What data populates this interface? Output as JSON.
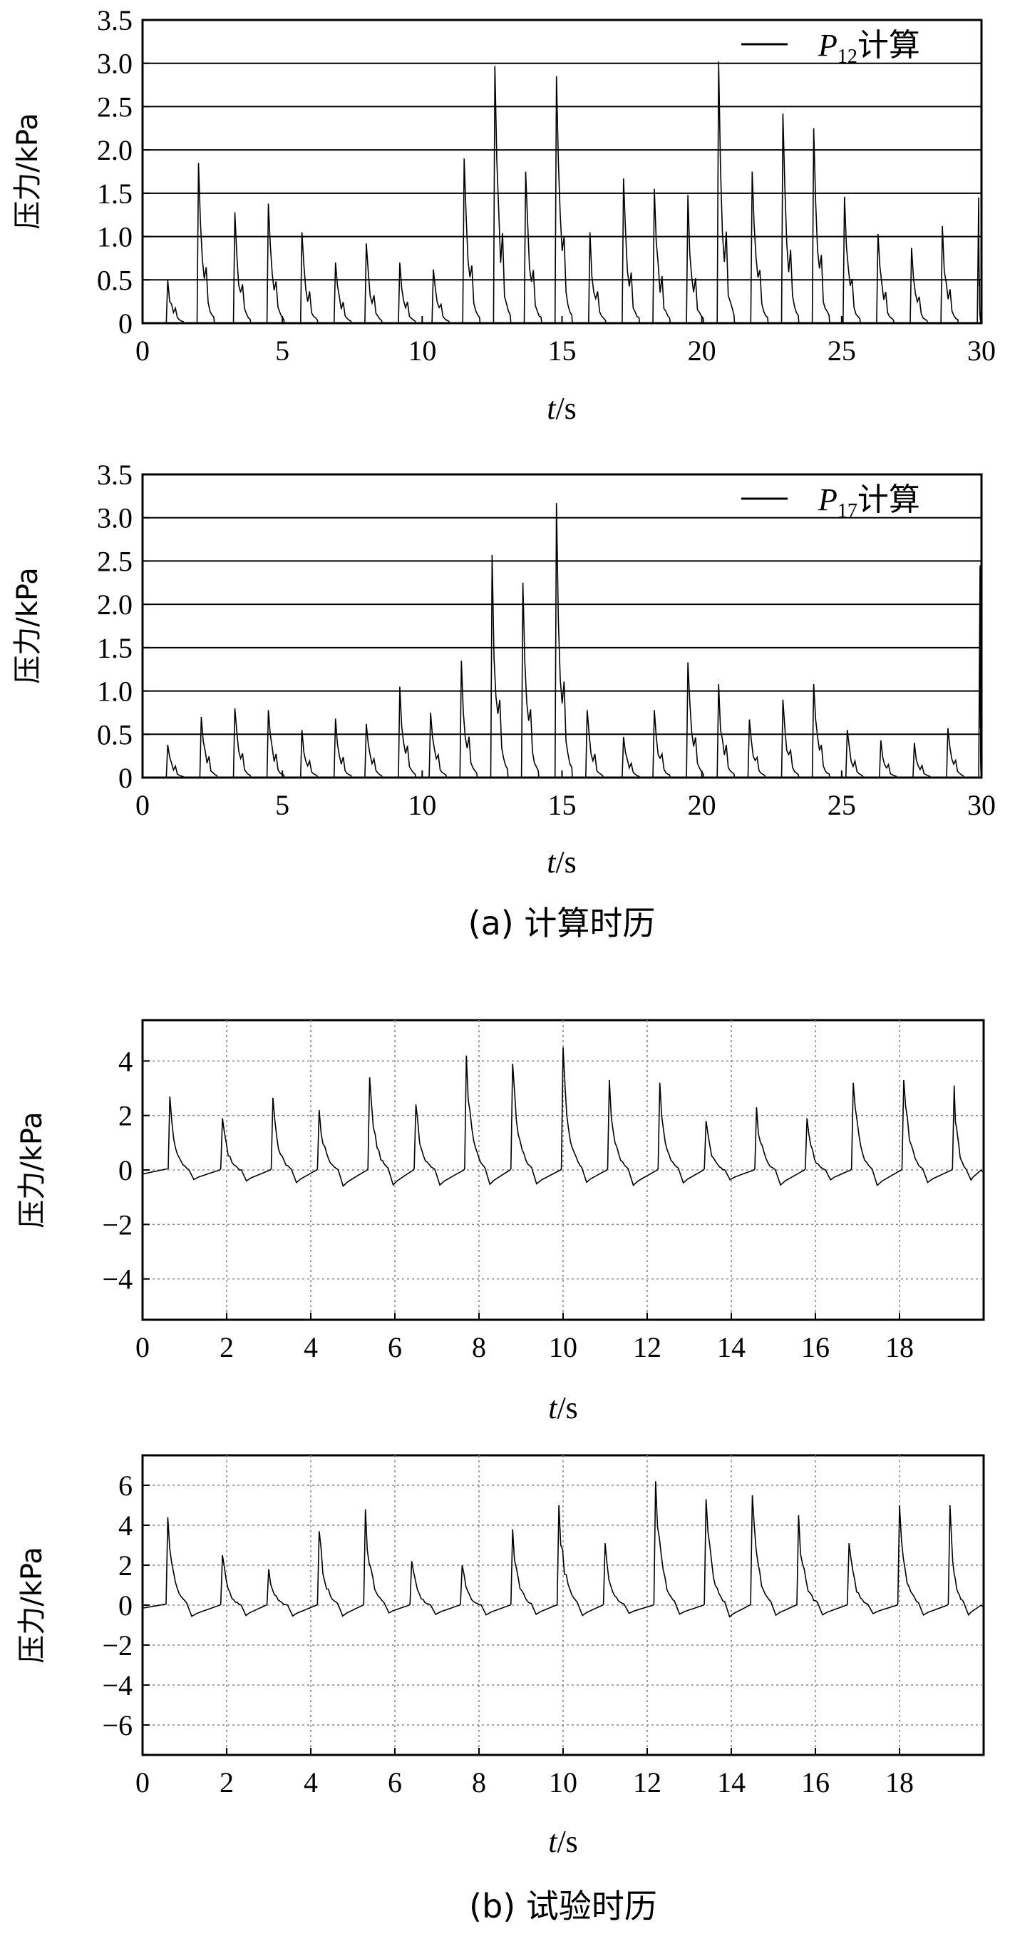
{
  "captions": {
    "a": "(a) 计算时历",
    "b": "(b) 试验时历"
  },
  "chart_data": [
    {
      "type": "line",
      "xlabel": "t/s",
      "ylabel": "压力/kPa",
      "xlim": [
        0,
        30
      ],
      "ylim": [
        0,
        3.5
      ],
      "xticks": [
        "0",
        "5",
        "10",
        "15",
        "20",
        "25",
        "30"
      ],
      "yticks": [
        "0",
        "0.5",
        "1.0",
        "1.5",
        "2.0",
        "2.5",
        "3.0",
        "3.5"
      ],
      "grid": "horizontal",
      "legend": "top-right",
      "series": [
        {
          "name": "P12计算",
          "peaks": [
            {
              "t": 0.9,
              "v": 0.5
            },
            {
              "t": 2.0,
              "v": 1.85
            },
            {
              "t": 3.3,
              "v": 1.28
            },
            {
              "t": 4.5,
              "v": 1.38
            },
            {
              "t": 5.7,
              "v": 1.05
            },
            {
              "t": 6.9,
              "v": 0.7
            },
            {
              "t": 8.0,
              "v": 0.92
            },
            {
              "t": 9.2,
              "v": 0.7
            },
            {
              "t": 10.4,
              "v": 0.62
            },
            {
              "t": 11.5,
              "v": 1.9
            },
            {
              "t": 12.6,
              "v": 2.97
            },
            {
              "t": 13.7,
              "v": 1.75
            },
            {
              "t": 14.8,
              "v": 2.85
            },
            {
              "t": 16.0,
              "v": 1.05
            },
            {
              "t": 17.2,
              "v": 1.67
            },
            {
              "t": 18.3,
              "v": 1.55
            },
            {
              "t": 19.5,
              "v": 1.48
            },
            {
              "t": 20.6,
              "v": 3.02
            },
            {
              "t": 21.8,
              "v": 1.75
            },
            {
              "t": 22.9,
              "v": 2.42
            },
            {
              "t": 24.0,
              "v": 2.25
            },
            {
              "t": 25.1,
              "v": 1.46
            },
            {
              "t": 26.3,
              "v": 1.03
            },
            {
              "t": 27.5,
              "v": 0.87
            },
            {
              "t": 28.6,
              "v": 1.12
            },
            {
              "t": 29.9,
              "v": 1.45
            }
          ]
        }
      ]
    },
    {
      "type": "line",
      "xlabel": "t/s",
      "ylabel": "压力/kPa",
      "xlim": [
        0,
        30
      ],
      "ylim": [
        0,
        3.5
      ],
      "xticks": [
        "0",
        "5",
        "10",
        "15",
        "20",
        "25",
        "30"
      ],
      "yticks": [
        "0",
        "0.5",
        "1.0",
        "1.5",
        "2.0",
        "2.5",
        "3.0",
        "3.5"
      ],
      "grid": "horizontal",
      "legend": "top-right",
      "series": [
        {
          "name": "P17计算",
          "peaks": [
            {
              "t": 0.9,
              "v": 0.38
            },
            {
              "t": 2.1,
              "v": 0.7
            },
            {
              "t": 3.3,
              "v": 0.8
            },
            {
              "t": 4.5,
              "v": 0.78
            },
            {
              "t": 5.7,
              "v": 0.55
            },
            {
              "t": 6.9,
              "v": 0.68
            },
            {
              "t": 8.0,
              "v": 0.62
            },
            {
              "t": 9.2,
              "v": 1.05
            },
            {
              "t": 10.3,
              "v": 0.75
            },
            {
              "t": 11.4,
              "v": 1.35
            },
            {
              "t": 12.5,
              "v": 2.57
            },
            {
              "t": 13.6,
              "v": 2.25
            },
            {
              "t": 14.8,
              "v": 3.17
            },
            {
              "t": 15.9,
              "v": 0.78
            },
            {
              "t": 17.2,
              "v": 0.47
            },
            {
              "t": 18.3,
              "v": 0.78
            },
            {
              "t": 19.5,
              "v": 1.33
            },
            {
              "t": 20.6,
              "v": 1.08
            },
            {
              "t": 21.7,
              "v": 0.67
            },
            {
              "t": 22.9,
              "v": 0.9
            },
            {
              "t": 24.0,
              "v": 1.08
            },
            {
              "t": 25.2,
              "v": 0.55
            },
            {
              "t": 26.4,
              "v": 0.43
            },
            {
              "t": 27.6,
              "v": 0.4
            },
            {
              "t": 28.8,
              "v": 0.57
            },
            {
              "t": 29.95,
              "v": 2.45
            }
          ]
        }
      ]
    },
    {
      "type": "line",
      "xlabel": "t/s",
      "ylabel": "压力/kPa",
      "xlim": [
        0,
        20
      ],
      "ylim": [
        -5.5,
        5.5
      ],
      "xticks": [
        "0",
        "2",
        "4",
        "6",
        "8",
        "10",
        "12",
        "14",
        "16",
        "18"
      ],
      "yticks": [
        "−4",
        "−2",
        "0",
        "2",
        "4"
      ],
      "ytick_values": [
        -4,
        -2,
        0,
        2,
        4
      ],
      "grid": "dotted",
      "series": [
        {
          "peaks": [
            {
              "t": 0.65,
              "v": 2.7
            },
            {
              "t": 1.9,
              "v": 1.9
            },
            {
              "t": 3.1,
              "v": 2.65
            },
            {
              "t": 4.2,
              "v": 2.2
            },
            {
              "t": 5.4,
              "v": 3.4
            },
            {
              "t": 6.5,
              "v": 2.4
            },
            {
              "t": 7.7,
              "v": 4.2
            },
            {
              "t": 8.8,
              "v": 3.9
            },
            {
              "t": 10.0,
              "v": 4.5
            },
            {
              "t": 11.1,
              "v": 3.3
            },
            {
              "t": 12.3,
              "v": 3.2
            },
            {
              "t": 13.4,
              "v": 1.8
            },
            {
              "t": 14.6,
              "v": 2.3
            },
            {
              "t": 15.8,
              "v": 1.9
            },
            {
              "t": 16.9,
              "v": 3.2
            },
            {
              "t": 18.1,
              "v": 3.3
            },
            {
              "t": 19.3,
              "v": 3.1
            }
          ]
        }
      ]
    },
    {
      "type": "line",
      "xlabel": "t/s",
      "ylabel": "压力/kPa",
      "xlim": [
        0,
        20
      ],
      "ylim": [
        -7.5,
        7.5
      ],
      "xticks": [
        "0",
        "2",
        "4",
        "6",
        "8",
        "10",
        "12",
        "14",
        "16",
        "18"
      ],
      "yticks": [
        "−6",
        "−4",
        "−2",
        "0",
        "2",
        "4",
        "6"
      ],
      "ytick_values": [
        -6,
        -4,
        -2,
        0,
        2,
        4,
        6
      ],
      "grid": "dotted",
      "series": [
        {
          "peaks": [
            {
              "t": 0.6,
              "v": 4.4
            },
            {
              "t": 1.9,
              "v": 2.5
            },
            {
              "t": 3.0,
              "v": 1.8
            },
            {
              "t": 4.2,
              "v": 3.7
            },
            {
              "t": 5.3,
              "v": 4.8
            },
            {
              "t": 6.4,
              "v": 2.2
            },
            {
              "t": 7.6,
              "v": 2.0
            },
            {
              "t": 8.8,
              "v": 3.8
            },
            {
              "t": 9.9,
              "v": 5.0
            },
            {
              "t": 11.0,
              "v": 3.1
            },
            {
              "t": 12.2,
              "v": 6.2
            },
            {
              "t": 13.4,
              "v": 5.3
            },
            {
              "t": 14.5,
              "v": 5.5
            },
            {
              "t": 15.6,
              "v": 4.5
            },
            {
              "t": 16.8,
              "v": 3.1
            },
            {
              "t": 18.0,
              "v": 5.0
            },
            {
              "t": 19.2,
              "v": 5.0
            }
          ]
        }
      ]
    }
  ]
}
